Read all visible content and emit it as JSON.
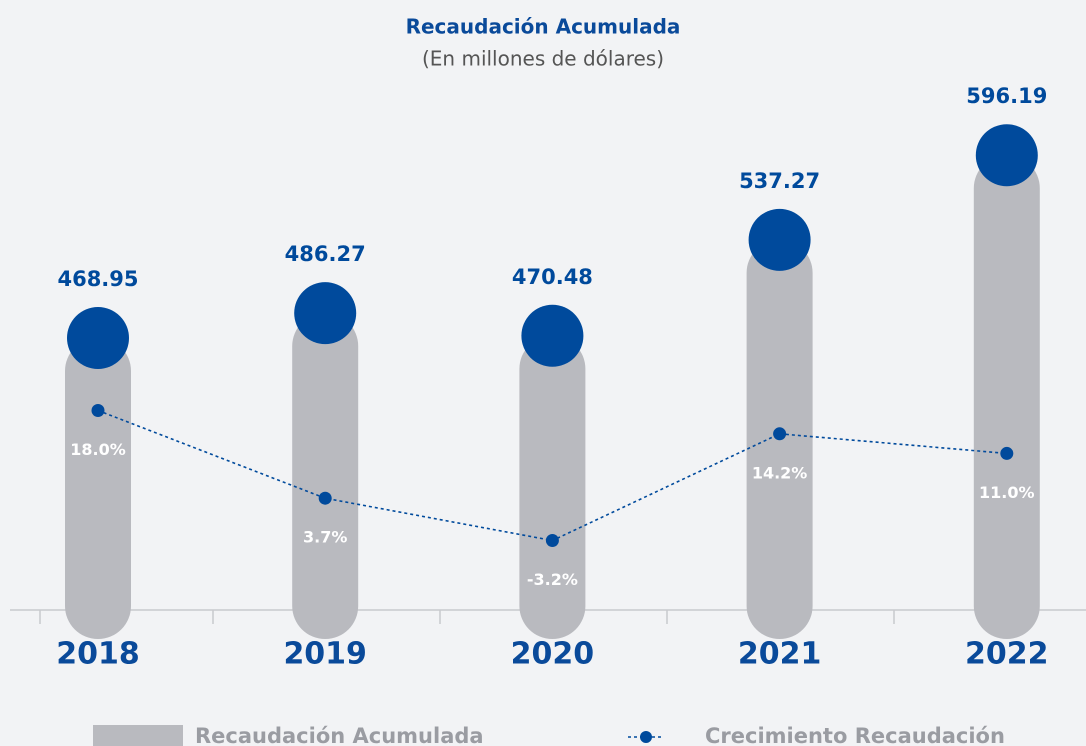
{
  "chart_data": {
    "type": "bar",
    "title": "Recaudación Acumulada",
    "subtitle": "(En millones de dólares)",
    "categories": [
      "2018",
      "2019",
      "2020",
      "2021",
      "2022"
    ],
    "ylim": [
      281,
      620
    ],
    "y2lim": [
      -14.2,
      65.2
    ],
    "series": [
      {
        "name": "Recaudación Acumulada",
        "type": "bar",
        "color": "#b9babf",
        "marker_color": "#004a9c",
        "values": [
          468.95,
          486.27,
          470.48,
          537.27,
          596.19
        ]
      },
      {
        "name": "Crecimiento Recaudación",
        "type": "line",
        "axis": "y2",
        "color": "#004a9c",
        "values": [
          18.0,
          3.7,
          -3.2,
          14.2,
          11.0
        ],
        "value_labels": [
          "18.0%",
          "3.7%",
          "-3.2%",
          "14.2%",
          "11.0%"
        ]
      }
    ]
  }
}
